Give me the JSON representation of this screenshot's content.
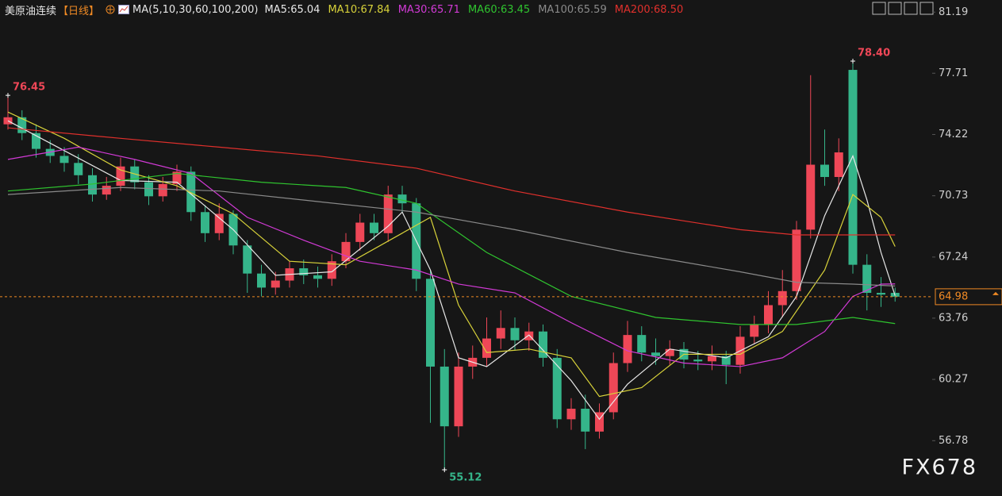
{
  "chart_data": {
    "type": "candlestick",
    "title": "美原油连续",
    "period": "【日线】",
    "indicator": "MA(5,10,30,60,100,200)",
    "watermark": "FX678",
    "up_color": "#ee4757",
    "down_color": "#35b58a",
    "ylim": [
      53.63,
      81.88
    ],
    "yticks": [
      81.19,
      77.71,
      74.22,
      70.73,
      67.24,
      63.76,
      60.27,
      56.78
    ],
    "open": [
      74.8,
      75.2,
      74.3,
      73.4,
      73.0,
      72.6,
      71.9,
      70.8,
      71.3,
      72.4,
      71.5,
      70.7,
      71.4,
      72.1,
      69.8,
      68.6,
      69.7,
      67.9,
      66.3,
      65.5,
      65.9,
      66.6,
      66.2,
      66.0,
      67.0,
      68.1,
      69.2,
      68.6,
      70.8,
      70.3,
      66.0,
      61.0,
      57.6,
      61.0,
      61.5,
      62.6,
      63.2,
      62.5,
      63.0,
      61.5,
      58.0,
      58.6,
      57.3,
      58.4,
      61.2,
      62.8,
      61.8,
      61.6,
      62.0,
      61.4,
      61.3,
      61.6,
      61.1,
      62.7,
      63.4,
      64.5,
      65.3,
      68.8,
      72.5,
      71.8,
      77.9,
      66.8,
      65.2,
      65.2
    ],
    "high": [
      76.45,
      75.6,
      74.8,
      73.9,
      73.5,
      73.1,
      72.3,
      71.8,
      72.9,
      72.8,
      71.9,
      71.8,
      72.5,
      72.4,
      70.2,
      70.3,
      69.9,
      68.2,
      66.8,
      66.4,
      67.0,
      67.1,
      66.7,
      67.4,
      68.6,
      69.7,
      69.7,
      71.3,
      71.3,
      70.6,
      66.5,
      62.0,
      61.8,
      62.2,
      63.8,
      64.2,
      63.8,
      63.5,
      63.4,
      62.0,
      59.2,
      59.4,
      58.9,
      61.8,
      63.6,
      63.3,
      62.6,
      62.5,
      62.4,
      61.9,
      62.2,
      61.9,
      63.3,
      63.9,
      65.3,
      66.5,
      69.3,
      77.6,
      74.5,
      74.0,
      78.4,
      67.4,
      66.1,
      65.5
    ],
    "low": [
      74.5,
      73.9,
      72.9,
      72.6,
      72.1,
      71.4,
      70.4,
      70.5,
      71.0,
      71.1,
      70.2,
      70.4,
      71.0,
      69.3,
      68.1,
      68.2,
      67.4,
      65.2,
      65.0,
      65.1,
      65.5,
      65.7,
      65.5,
      65.6,
      66.6,
      67.6,
      68.2,
      68.1,
      69.8,
      65.3,
      57.8,
      55.12,
      57.0,
      60.3,
      61.0,
      62.0,
      61.9,
      61.9,
      61.0,
      57.5,
      57.4,
      56.3,
      56.9,
      58.0,
      60.7,
      61.3,
      61.1,
      61.1,
      60.9,
      60.8,
      60.8,
      60.0,
      60.6,
      62.3,
      62.9,
      63.8,
      64.8,
      68.3,
      71.3,
      71.0,
      66.3,
      64.2,
      64.4,
      64.7
    ],
    "close": [
      75.2,
      74.3,
      73.4,
      73.0,
      72.6,
      71.9,
      70.8,
      71.3,
      72.4,
      71.5,
      70.7,
      71.4,
      72.1,
      69.8,
      68.6,
      69.7,
      67.9,
      66.3,
      65.5,
      65.9,
      66.6,
      66.2,
      66.0,
      67.0,
      68.1,
      69.2,
      68.6,
      70.8,
      70.3,
      66.0,
      61.0,
      57.6,
      61.0,
      61.5,
      62.6,
      63.2,
      62.5,
      63.0,
      61.5,
      58.0,
      58.6,
      57.3,
      58.4,
      61.2,
      62.8,
      61.8,
      61.6,
      62.0,
      61.4,
      61.3,
      61.6,
      61.1,
      62.7,
      63.4,
      64.5,
      65.3,
      68.8,
      72.5,
      71.8,
      73.2,
      66.8,
      65.2,
      65.1,
      64.98
    ],
    "series": [
      {
        "name": "MA5",
        "label": "MA5:65.04",
        "color": "#e8e8e8",
        "x": [
          0,
          4,
          8,
          12,
          16,
          19,
          23,
          27,
          28,
          30,
          32,
          34,
          37,
          40,
          42,
          44,
          47,
          51,
          54,
          56,
          58,
          60,
          61,
          62,
          63
        ],
        "values": [
          75.0,
          73.3,
          71.6,
          71.5,
          68.8,
          66.2,
          66.4,
          69.0,
          69.8,
          66.5,
          61.5,
          61.0,
          62.8,
          60.2,
          58.0,
          60.0,
          62.0,
          61.5,
          62.7,
          65.0,
          69.6,
          73.0,
          70.5,
          67.5,
          65.04
        ]
      },
      {
        "name": "MA10",
        "label": "MA10:67.84",
        "color": "#d8d23a",
        "x": [
          0,
          4,
          8,
          12,
          16,
          20,
          24,
          28,
          30,
          32,
          34,
          37,
          40,
          42,
          45,
          48,
          52,
          55,
          58,
          60,
          62,
          63
        ],
        "values": [
          75.5,
          74.0,
          72.2,
          71.3,
          69.7,
          67.0,
          66.8,
          68.6,
          69.5,
          64.5,
          61.8,
          62.0,
          61.5,
          59.3,
          59.8,
          61.7,
          61.7,
          63.0,
          66.5,
          70.8,
          69.5,
          67.84
        ]
      },
      {
        "name": "MA30",
        "label": "MA30:65.71",
        "color": "#d23ad6",
        "x": [
          0,
          5,
          9,
          13,
          17,
          21,
          25,
          29,
          32,
          36,
          40,
          44,
          48,
          52,
          55,
          58,
          60,
          62,
          63
        ],
        "values": [
          72.8,
          73.5,
          72.8,
          72.0,
          69.5,
          68.2,
          67.0,
          66.5,
          65.7,
          65.2,
          63.5,
          61.9,
          61.2,
          61.0,
          61.5,
          63.0,
          65.0,
          65.7,
          65.71
        ]
      },
      {
        "name": "MA60",
        "label": "MA60:63.45",
        "color": "#2fc42f",
        "x": [
          0,
          6,
          12,
          18,
          24,
          29,
          34,
          40,
          46,
          52,
          56,
          60,
          63
        ],
        "values": [
          71.0,
          71.4,
          72.0,
          71.5,
          71.2,
          70.3,
          67.5,
          65.0,
          63.8,
          63.4,
          63.4,
          63.8,
          63.45
        ]
      },
      {
        "name": "MA100",
        "label": "MA100:65.59",
        "color": "#8a8a8a",
        "x": [
          0,
          8,
          15,
          22,
          29,
          36,
          44,
          52,
          56,
          60,
          63
        ],
        "values": [
          70.8,
          71.2,
          71.0,
          70.4,
          69.8,
          68.8,
          67.5,
          66.4,
          65.8,
          65.7,
          65.59
        ]
      },
      {
        "name": "MA200",
        "label": "MA200:68.50",
        "color": "#e0302c",
        "x": [
          0,
          8,
          15,
          22,
          29,
          36,
          44,
          52,
          56,
          60,
          63
        ],
        "values": [
          74.6,
          74.0,
          73.5,
          73.0,
          72.3,
          71.0,
          69.8,
          68.8,
          68.5,
          68.5,
          68.5
        ]
      }
    ],
    "last_price": 64.98,
    "annotations": [
      {
        "index": 0,
        "value": 76.45,
        "label": "76.45"
      },
      {
        "index": 60,
        "value": 78.4,
        "label": "78.40"
      },
      {
        "index": 31,
        "value": 55.12,
        "label": "55.12"
      }
    ]
  }
}
